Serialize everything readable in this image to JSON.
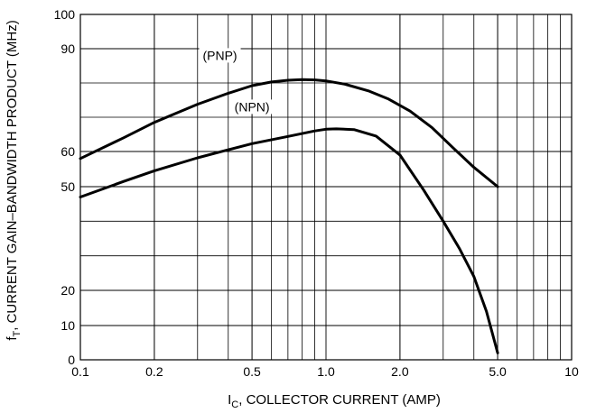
{
  "chart_data": {
    "type": "line",
    "title": "",
    "xlabel": {
      "main": "I",
      "sub": "C",
      "rest": ", COLLECTOR CURRENT (AMP)"
    },
    "ylabel": {
      "main": "f",
      "sub": "T",
      "rest": ", CURRENT GAIN–BANDWIDTH PRODUCT (MHz)"
    },
    "x_scale": "log",
    "xlim": [
      0.1,
      10
    ],
    "ylim": [
      0,
      100
    ],
    "x_ticks": [
      {
        "value": 0.1,
        "label": "0.1"
      },
      {
        "value": 0.2,
        "label": "0.2"
      },
      {
        "value": 0.5,
        "label": "0.5"
      },
      {
        "value": 1.0,
        "label": "1.0"
      },
      {
        "value": 2.0,
        "label": "2.0"
      },
      {
        "value": 5.0,
        "label": "5.0"
      },
      {
        "value": 10,
        "label": "10"
      }
    ],
    "y_ticks": [
      {
        "value": 0,
        "label": "0"
      },
      {
        "value": 10,
        "label": "10"
      },
      {
        "value": 20,
        "label": "20"
      },
      {
        "value": 50,
        "label": "50"
      },
      {
        "value": 60,
        "label": "60"
      },
      {
        "value": 90,
        "label": "90"
      },
      {
        "value": 100,
        "label": "100"
      }
    ],
    "grid": true,
    "series": [
      {
        "name": "(PNP)",
        "label_at": [
          0.37,
          87
        ],
        "x": [
          0.1,
          0.15,
          0.2,
          0.3,
          0.4,
          0.5,
          0.6,
          0.7,
          0.8,
          0.9,
          1.0,
          1.2,
          1.5,
          1.8,
          2.2,
          2.7,
          3.3,
          4.0,
          5.0
        ],
        "y": [
          58,
          64,
          68.5,
          73.8,
          77,
          79.2,
          80.3,
          80.8,
          81,
          80.9,
          80.6,
          79.6,
          77.6,
          75.3,
          71.8,
          67,
          61,
          55.5,
          50
        ]
      },
      {
        "name": "(NPN)",
        "label_at": [
          0.5,
          72
        ],
        "x": [
          0.1,
          0.15,
          0.2,
          0.3,
          0.4,
          0.5,
          0.7,
          0.9,
          1.0,
          1.1,
          1.3,
          1.6,
          2.0,
          2.5,
          3.0,
          3.5,
          4.0,
          4.5,
          5.0
        ],
        "y": [
          47,
          51.5,
          54.5,
          58.2,
          60.5,
          62.3,
          64.4,
          66,
          66.5,
          66.6,
          66.4,
          64.5,
          59,
          49,
          40,
          32,
          24,
          14,
          2
        ]
      }
    ]
  }
}
